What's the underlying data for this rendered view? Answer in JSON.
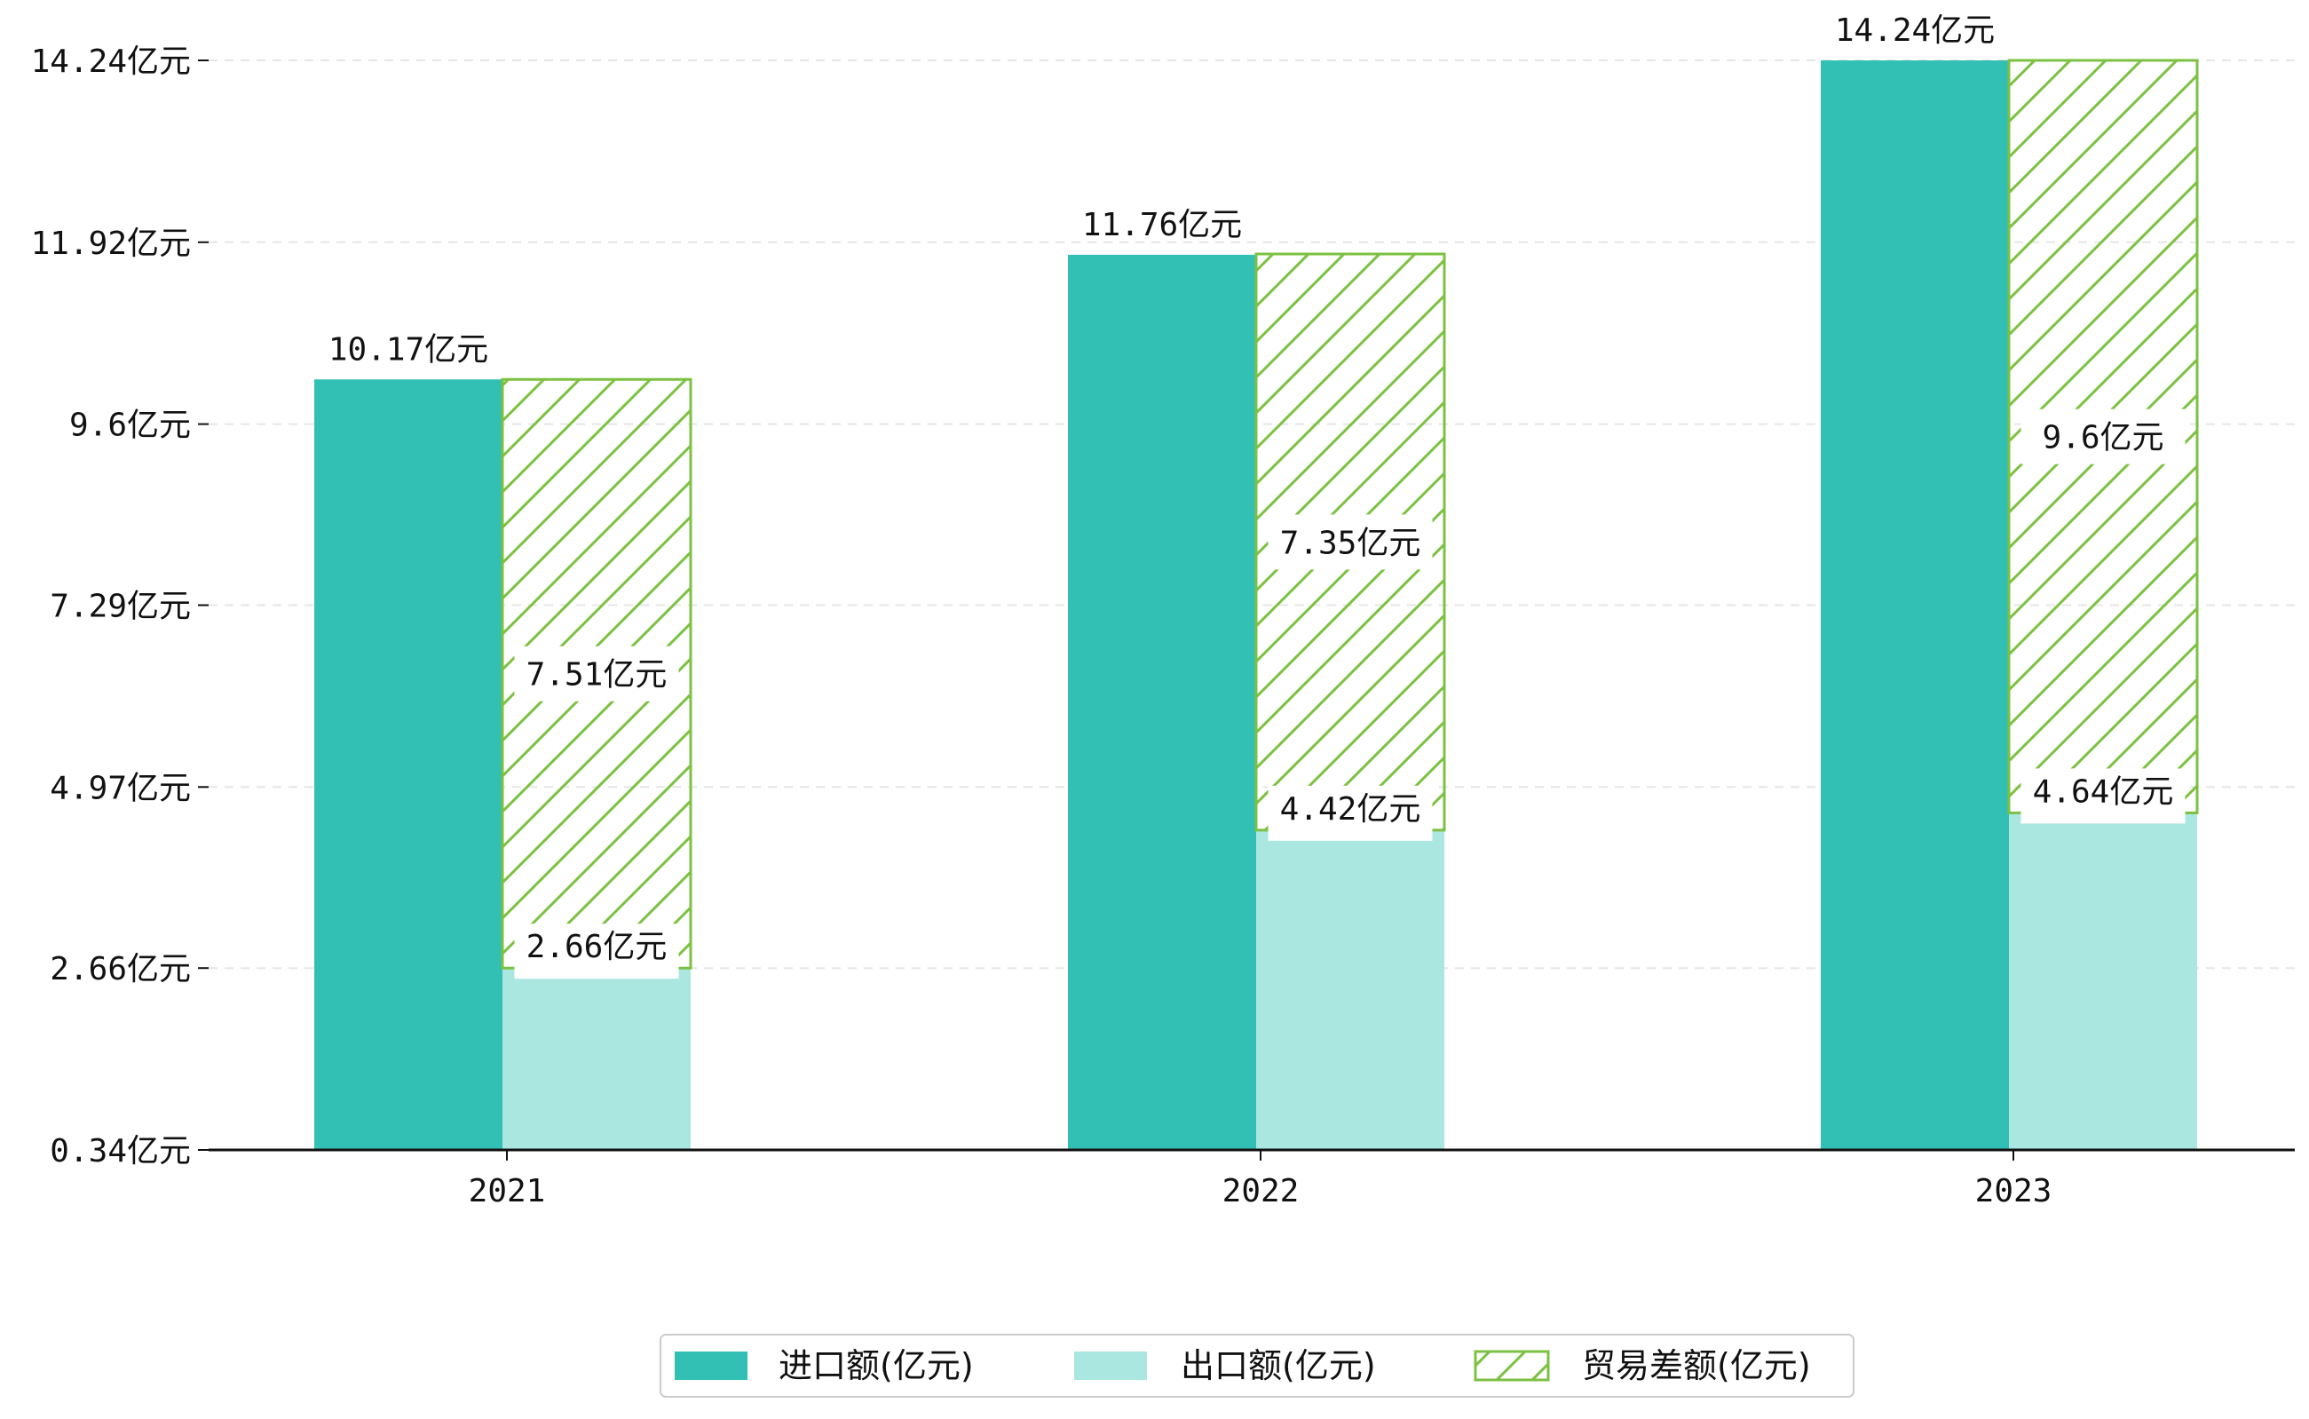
{
  "chart_data": {
    "type": "bar",
    "title": "",
    "xlabel": "",
    "ylabel": "",
    "categories": [
      "2021",
      "2022",
      "2023"
    ],
    "ylim": [
      0.34,
      14.24
    ],
    "yticks": [
      0.34,
      2.66,
      4.97,
      7.29,
      9.6,
      11.92,
      14.24
    ],
    "ytick_labels": [
      "0.34亿元",
      "2.66亿元",
      "4.97亿元",
      "7.29亿元",
      "9.6亿元",
      "11.92亿元",
      "14.24亿元"
    ],
    "grid": "horizontal-dashed",
    "legend_position": "bottom-center",
    "series": [
      {
        "name": "进口额(亿元)",
        "values": [
          10.17,
          11.76,
          14.24
        ],
        "labels": [
          "10.17亿元",
          "11.76亿元",
          "14.24亿元"
        ],
        "color": "#31c0b3",
        "stack": "import"
      },
      {
        "name": "出口额(亿元)",
        "values": [
          2.66,
          4.42,
          4.64
        ],
        "labels": [
          "2.66亿元",
          "4.42亿元",
          "4.64亿元"
        ],
        "color": "#abe7e1",
        "stack": "export"
      },
      {
        "name": "贸易差额(亿元)",
        "values": [
          7.51,
          7.35,
          9.6
        ],
        "labels": [
          "7.51亿元",
          "7.35亿元",
          "9.6亿元"
        ],
        "color": "#7cc142",
        "pattern": "hatch",
        "stack": "export"
      }
    ]
  }
}
